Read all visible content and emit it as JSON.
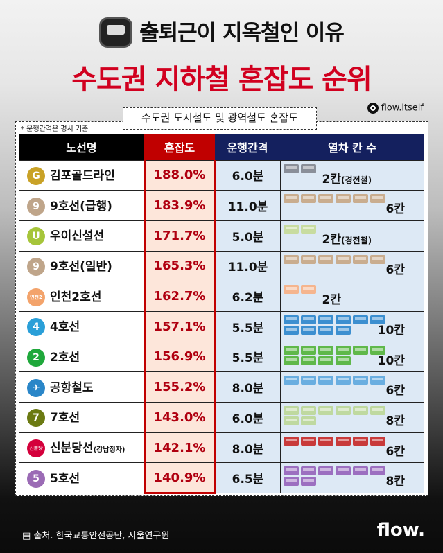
{
  "title": "출퇴근이 지옥철인 이유",
  "headline": "수도권 지하철 혼잡도 순위",
  "instagram": "flow.itself",
  "subtitle": "수도권 도시철도 및 광역철도 혼잡도",
  "note": "* 운행간격은 평시 기준",
  "headers": [
    "노선명",
    "혼잡도",
    "운행간격",
    "열차 칸 수"
  ],
  "rows": [
    {
      "badge": "G",
      "color": "#c9a227",
      "name": "김포골드라인",
      "sub": "",
      "congestion": "188.0%",
      "interval": "6.0분",
      "cars": 2,
      "car_color": "#8a8f99",
      "count": "2칸",
      "count_note": "(경전철)"
    },
    {
      "badge": "9",
      "color": "#bfa58a",
      "name": "9호선(급행)",
      "sub": "",
      "congestion": "183.9%",
      "interval": "11.0분",
      "cars": 6,
      "car_color": "#c9ad8f",
      "count": "6칸",
      "count_note": ""
    },
    {
      "badge": "U",
      "color": "#a6c53a",
      "name": "우이신설선",
      "sub": "",
      "congestion": "171.7%",
      "interval": "5.0분",
      "cars": 2,
      "car_color": "#c8dca0",
      "count": "2칸",
      "count_note": "(경전철)"
    },
    {
      "badge": "9",
      "color": "#bfa58a",
      "name": "9호선(일반)",
      "sub": "",
      "congestion": "165.3%",
      "interval": "11.0분",
      "cars": 6,
      "car_color": "#c9ad8f",
      "count": "6칸",
      "count_note": ""
    },
    {
      "badge": "인천2",
      "color": "#f3a36b",
      "name": "인천2호선",
      "sub": "",
      "congestion": "162.7%",
      "interval": "6.2분",
      "cars": 2,
      "car_color": "#f5b58e",
      "count": "2칸",
      "count_note": ""
    },
    {
      "badge": "4",
      "color": "#2a9fd8",
      "name": "4호선",
      "sub": "",
      "congestion": "157.1%",
      "interval": "5.5분",
      "cars": 10,
      "car_color": "#3c8fd0",
      "count": "10칸",
      "count_note": ""
    },
    {
      "badge": "2",
      "color": "#1fa83b",
      "name": "2호선",
      "sub": "",
      "congestion": "156.9%",
      "interval": "5.5분",
      "cars": 10,
      "car_color": "#5fb84a",
      "count": "10칸",
      "count_note": ""
    },
    {
      "badge": "✈",
      "color": "#2a86c8",
      "name": "공항철도",
      "sub": "",
      "congestion": "155.2%",
      "interval": "8.0분",
      "cars": 6,
      "car_color": "#6aaee0",
      "count": "6칸",
      "count_note": ""
    },
    {
      "badge": "7",
      "color": "#6b7a12",
      "name": "7호선",
      "sub": "",
      "congestion": "143.0%",
      "interval": "6.0분",
      "cars": 8,
      "car_color": "#bfd9a0",
      "count": "8칸",
      "count_note": ""
    },
    {
      "badge": "신분당",
      "color": "#d4003b",
      "name": "신분당선",
      "sub": "(강남정자)",
      "congestion": "142.1%",
      "interval": "8.0분",
      "cars": 6,
      "car_color": "#c83a3a",
      "count": "6칸",
      "count_note": ""
    },
    {
      "badge": "5",
      "color": "#9b6bb5",
      "name": "5호선",
      "sub": "",
      "congestion": "140.9%",
      "interval": "6.5분",
      "cars": 8,
      "car_color": "#9c6fc0",
      "count": "8칸",
      "count_note": ""
    }
  ],
  "source": "출처. 한국교통안전공단, 서울연구원",
  "brand": "flow."
}
